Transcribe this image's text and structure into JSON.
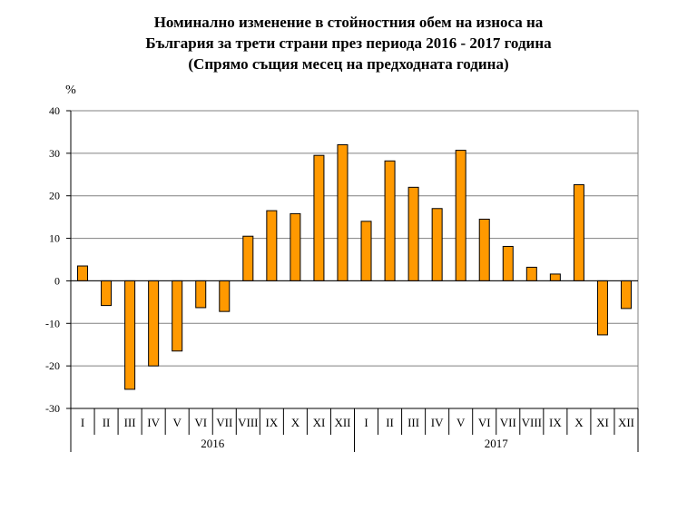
{
  "title_lines": [
    "Номинално изменение в стойностния обем на износа на",
    "България за трети страни през периода 2016 - 2017 година",
    "(Спрямо същия месец на предходната година)"
  ],
  "colors": {
    "bar_fill": "#ff9900",
    "bar_stroke": "#000000",
    "grid": "#808080",
    "axis": "#000000"
  },
  "chart_data": {
    "type": "bar",
    "ylabel": "%",
    "ylim": [
      -30,
      40
    ],
    "yticks": [
      -30,
      -20,
      -10,
      0,
      10,
      20,
      30,
      40
    ],
    "grid": true,
    "groups": [
      {
        "label": "2016",
        "categories": [
          "I",
          "II",
          "III",
          "IV",
          "V",
          "VI",
          "VII",
          "VIII",
          "IX",
          "X",
          "XI",
          "XII"
        ]
      },
      {
        "label": "2017",
        "categories": [
          "I",
          "II",
          "III",
          "IV",
          "V",
          "VI",
          "VII",
          "VIII",
          "IX",
          "X",
          "XI",
          "XII"
        ]
      }
    ],
    "values": [
      3.5,
      -5.8,
      -25.5,
      -20.0,
      -16.5,
      -6.3,
      -7.2,
      10.5,
      16.5,
      15.8,
      29.5,
      32.0,
      14.0,
      28.2,
      22.0,
      17.0,
      30.7,
      14.5,
      8.1,
      3.2,
      1.6,
      22.6,
      -12.7,
      -6.5
    ]
  }
}
